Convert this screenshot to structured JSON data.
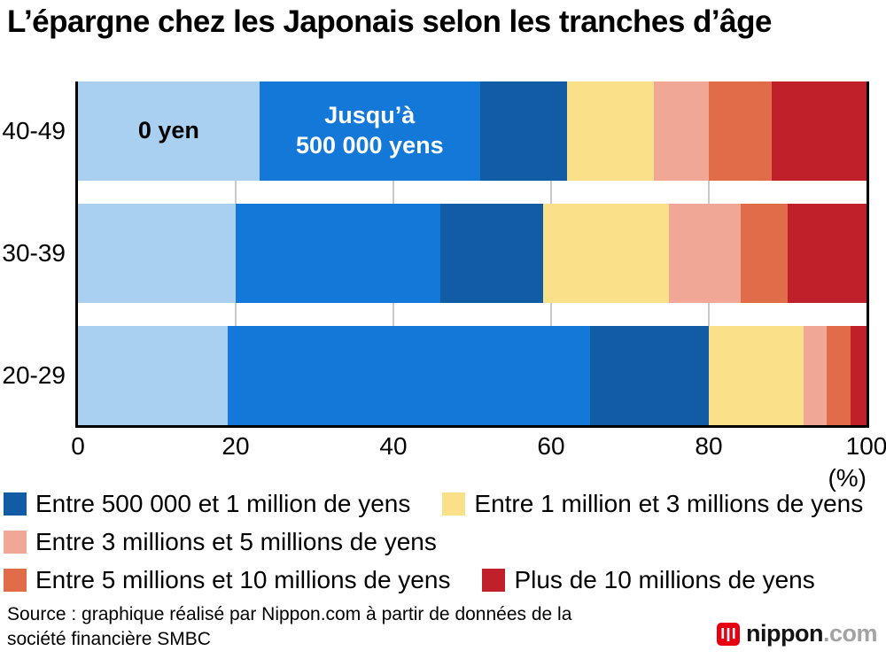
{
  "title": "L’épargne chez les Japonais selon les tranches d’âge",
  "chart_data": {
    "type": "bar",
    "orientation": "horizontal",
    "stacked": true,
    "grid": "vertical",
    "categories": [
      "40-49",
      "30-39",
      "20-29"
    ],
    "series": [
      {
        "name": "0 yen",
        "color": "#a9cff1",
        "values": [
          23,
          20,
          19
        ]
      },
      {
        "name": "Jusqu’à 500 000 yens",
        "color": "#1478d9",
        "values": [
          28,
          26,
          46
        ]
      },
      {
        "name": "Entre 500 000 et 1 million de yens",
        "color": "#115ca5",
        "values": [
          11,
          13,
          15
        ]
      },
      {
        "name": "Entre 1 million et 3 millions de yens",
        "color": "#fae089",
        "values": [
          11,
          16,
          12
        ]
      },
      {
        "name": "Entre 3 millions et 5 millions de yens",
        "color": "#f1a795",
        "values": [
          7,
          9,
          3
        ]
      },
      {
        "name": "Entre 5 millions et 10 millions de yens",
        "color": "#e06c4a",
        "values": [
          8,
          6,
          3
        ]
      },
      {
        "name": "Plus de 10 millions de yens",
        "color": "#c0202a",
        "values": [
          12,
          10,
          2
        ]
      }
    ],
    "xlim": [
      0,
      100
    ],
    "x_ticks": [
      0,
      20,
      40,
      60,
      80,
      100
    ],
    "x_unit": "(%)",
    "legend_position": "bottom"
  },
  "bar_labels": {
    "zero_yen": "0 yen",
    "jusqua_line1": "Jusqu’à",
    "jusqua_line2": "500 000 yens"
  },
  "legend": {
    "rows": [
      [
        2,
        3
      ],
      [
        4
      ],
      [
        5,
        6
      ]
    ]
  },
  "source": {
    "line1": "Source : graphique réalisé par Nippon.com à partir de données de la",
    "line2": "société financière SMBC"
  },
  "logo": {
    "brand": "nippon",
    "tld": ".com",
    "icon_color": "#e60012"
  }
}
